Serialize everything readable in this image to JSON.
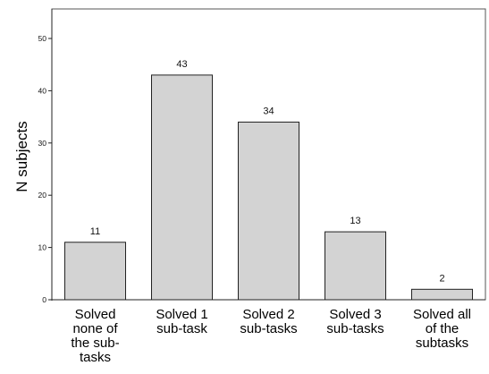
{
  "chart_data": {
    "type": "bar",
    "title": "",
    "xlabel": "",
    "ylabel": "N subjects",
    "categories": [
      [
        "Solved",
        "none of",
        "the sub-",
        "tasks"
      ],
      [
        "Solved 1",
        "sub-task"
      ],
      [
        "Solved 2",
        "sub-tasks"
      ],
      [
        "Solved 3",
        "sub-tasks"
      ],
      [
        "Solved all",
        "of the",
        "subtasks"
      ]
    ],
    "values": [
      11,
      43,
      34,
      13,
      2
    ],
    "data_labels": [
      "11",
      "43",
      "34",
      "13",
      "2"
    ],
    "yticks": [
      0,
      10,
      20,
      30,
      40,
      50
    ],
    "ylim": [
      0,
      55
    ],
    "grid": false,
    "legend": "none"
  },
  "colors": {
    "bar_fill": "#d3d3d3",
    "bar_stroke": "#222222",
    "axis": "#222222",
    "frame": "#555555",
    "background": "#ffffff"
  }
}
